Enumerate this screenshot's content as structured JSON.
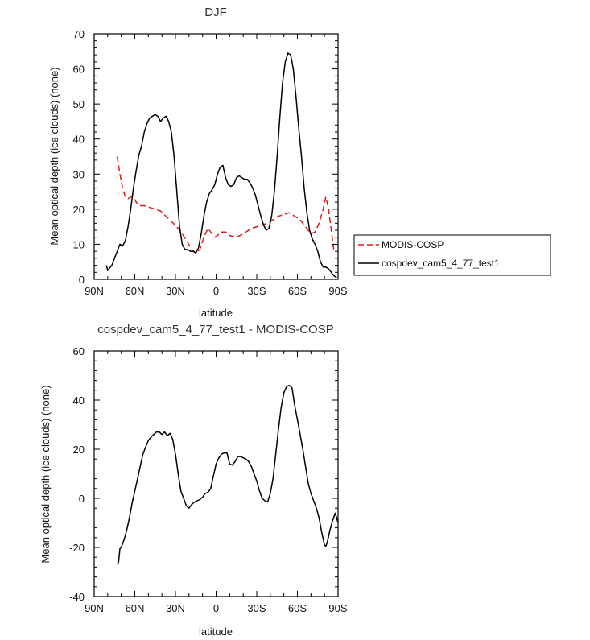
{
  "chart_data": [
    {
      "type": "line",
      "title": "DJF",
      "xlabel": "latitude",
      "ylabel": "Mean optical depth (ice clouds) (none)",
      "xlim": [
        -90,
        90
      ],
      "ylim": [
        0,
        70
      ],
      "xticks": [
        -90,
        -60,
        -30,
        0,
        30,
        60,
        90
      ],
      "xtick_labels": [
        "90N",
        "60N",
        "30N",
        "0",
        "30S",
        "60S",
        "90S"
      ],
      "yticks": [
        0,
        10,
        20,
        30,
        40,
        50,
        60,
        70
      ],
      "ytick_labels": [
        "0",
        "10",
        "20",
        "30",
        "40",
        "50",
        "60",
        "70"
      ],
      "legend_position": "right",
      "series": [
        {
          "name": "MODIS-COSP",
          "color": "#e31a1c",
          "dash": "dashed",
          "points": [
            [
              -73,
              35
            ],
            [
              -71,
              30
            ],
            [
              -69,
              26
            ],
            [
              -67,
              23.5
            ],
            [
              -65,
              23
            ],
            [
              -63,
              23.5
            ],
            [
              -61,
              23.5
            ],
            [
              -59,
              22
            ],
            [
              -57,
              21
            ],
            [
              -53,
              21
            ],
            [
              -49,
              20.5
            ],
            [
              -45,
              20
            ],
            [
              -41,
              19.5
            ],
            [
              -37,
              18
            ],
            [
              -33,
              16.5
            ],
            [
              -29,
              15
            ],
            [
              -25,
              13
            ],
            [
              -21,
              10.5
            ],
            [
              -18,
              8.5
            ],
            [
              -15,
              7.5
            ],
            [
              -12,
              8.5
            ],
            [
              -9,
              12
            ],
            [
              -6,
              14.5
            ],
            [
              -3,
              13
            ],
            [
              -1,
              12
            ],
            [
              1,
              12.5
            ],
            [
              4,
              13.5
            ],
            [
              7,
              13.5
            ],
            [
              10,
              12.5
            ],
            [
              14,
              12
            ],
            [
              18,
              12.5
            ],
            [
              22,
              13.5
            ],
            [
              26,
              14.5
            ],
            [
              30,
              15
            ],
            [
              34,
              15.5
            ],
            [
              38,
              16
            ],
            [
              42,
              17
            ],
            [
              46,
              18
            ],
            [
              50,
              18.5
            ],
            [
              54,
              19
            ],
            [
              58,
              18
            ],
            [
              62,
              17
            ],
            [
              66,
              15
            ],
            [
              70,
              13
            ],
            [
              73,
              13.5
            ],
            [
              76,
              16
            ],
            [
              79,
              20
            ],
            [
              81,
              23.5
            ],
            [
              83,
              20
            ],
            [
              85,
              14
            ],
            [
              87,
              8
            ]
          ]
        },
        {
          "name": "cospdev_cam5_4_77_test1",
          "color": "#000000",
          "dash": "solid",
          "points": [
            [
              -81,
              4
            ],
            [
              -80,
              2.5
            ],
            [
              -79,
              3
            ],
            [
              -77,
              4
            ],
            [
              -75,
              6
            ],
            [
              -73,
              8
            ],
            [
              -71,
              10
            ],
            [
              -69,
              9.5
            ],
            [
              -67,
              11
            ],
            [
              -65,
              15
            ],
            [
              -63,
              20
            ],
            [
              -61,
              26
            ],
            [
              -59,
              31
            ],
            [
              -57,
              35.5
            ],
            [
              -55,
              38
            ],
            [
              -53,
              42
            ],
            [
              -51,
              44.5
            ],
            [
              -49,
              46
            ],
            [
              -47,
              46.5
            ],
            [
              -45,
              47
            ],
            [
              -43,
              46.5
            ],
            [
              -41,
              45
            ],
            [
              -39,
              46
            ],
            [
              -37,
              46.5
            ],
            [
              -35,
              45
            ],
            [
              -33,
              42
            ],
            [
              -31,
              35
            ],
            [
              -29,
              25
            ],
            [
              -27,
              15
            ],
            [
              -25,
              10
            ],
            [
              -23,
              8.5
            ],
            [
              -21,
              8.5
            ],
            [
              -19,
              8
            ],
            [
              -17,
              8
            ],
            [
              -15,
              7.5
            ],
            [
              -13,
              9
            ],
            [
              -11,
              13
            ],
            [
              -9,
              18
            ],
            [
              -7,
              22
            ],
            [
              -5,
              24.5
            ],
            [
              -3,
              25.5
            ],
            [
              -1,
              27
            ],
            [
              1,
              30
            ],
            [
              3,
              32
            ],
            [
              5,
              32.5
            ],
            [
              7,
              29
            ],
            [
              9,
              27
            ],
            [
              11,
              26.5
            ],
            [
              13,
              27
            ],
            [
              15,
              29
            ],
            [
              17,
              29.5
            ],
            [
              19,
              29
            ],
            [
              21,
              28.5
            ],
            [
              23,
              28.5
            ],
            [
              25,
              27.5
            ],
            [
              27,
              26
            ],
            [
              29,
              24
            ],
            [
              31,
              21
            ],
            [
              33,
              18
            ],
            [
              35,
              15.5
            ],
            [
              37,
              14
            ],
            [
              39,
              14.5
            ],
            [
              41,
              18
            ],
            [
              43,
              25
            ],
            [
              45,
              35
            ],
            [
              47,
              46
            ],
            [
              49,
              56
            ],
            [
              51,
              62
            ],
            [
              53,
              64.5
            ],
            [
              55,
              64
            ],
            [
              57,
              60
            ],
            [
              59,
              52
            ],
            [
              61,
              43
            ],
            [
              63,
              35
            ],
            [
              65,
              26
            ],
            [
              67,
              19
            ],
            [
              69,
              14
            ],
            [
              71,
              11.5
            ],
            [
              73,
              10
            ],
            [
              75,
              8
            ],
            [
              77,
              5
            ],
            [
              79,
              3.5
            ],
            [
              81,
              3.5
            ],
            [
              83,
              3
            ],
            [
              85,
              2
            ],
            [
              87,
              1
            ],
            [
              89,
              0.5
            ]
          ]
        }
      ]
    },
    {
      "type": "line",
      "title": "cospdev_cam5_4_77_test1 - MODIS-COSP",
      "xlabel": "latitude",
      "ylabel": "Mean optical depth (ice clouds) (none)",
      "xlim": [
        -90,
        90
      ],
      "ylim": [
        -40,
        60
      ],
      "xticks": [
        -90,
        -60,
        -30,
        0,
        30,
        60,
        90
      ],
      "xtick_labels": [
        "90N",
        "60N",
        "30N",
        "0",
        "30S",
        "60S",
        "90S"
      ],
      "yticks": [
        -40,
        -20,
        0,
        20,
        40,
        60
      ],
      "ytick_labels": [
        "-40",
        "-20",
        "0",
        "20",
        "40",
        "60"
      ],
      "series": [
        {
          "name": "",
          "color": "#000000",
          "dash": "solid",
          "points": [
            [
              -73,
              -27
            ],
            [
              -72,
              -26
            ],
            [
              -71,
              -20.5
            ],
            [
              -70,
              -20
            ],
            [
              -68,
              -17
            ],
            [
              -66,
              -13
            ],
            [
              -64,
              -8
            ],
            [
              -62,
              -2
            ],
            [
              -60,
              3
            ],
            [
              -58,
              8
            ],
            [
              -56,
              13
            ],
            [
              -54,
              18
            ],
            [
              -52,
              21
            ],
            [
              -50,
              23.5
            ],
            [
              -48,
              25
            ],
            [
              -46,
              26
            ],
            [
              -44,
              27
            ],
            [
              -42,
              27
            ],
            [
              -40,
              26
            ],
            [
              -38,
              27
            ],
            [
              -36,
              25.5
            ],
            [
              -34,
              26.5
            ],
            [
              -32,
              24
            ],
            [
              -30,
              18
            ],
            [
              -28,
              10
            ],
            [
              -26,
              3
            ],
            [
              -24,
              0
            ],
            [
              -22,
              -3
            ],
            [
              -20,
              -4
            ],
            [
              -18,
              -2.5
            ],
            [
              -16,
              -1.5
            ],
            [
              -14,
              -1
            ],
            [
              -12,
              -0.5
            ],
            [
              -10,
              0.5
            ],
            [
              -8,
              2
            ],
            [
              -6,
              2.5
            ],
            [
              -4,
              4
            ],
            [
              -2,
              9
            ],
            [
              0,
              14
            ],
            [
              2,
              16.5
            ],
            [
              4,
              18
            ],
            [
              6,
              18.5
            ],
            [
              8,
              18.5
            ],
            [
              10,
              14
            ],
            [
              12,
              13.5
            ],
            [
              14,
              15
            ],
            [
              16,
              17
            ],
            [
              18,
              17
            ],
            [
              20,
              16.5
            ],
            [
              22,
              16
            ],
            [
              24,
              15
            ],
            [
              26,
              13
            ],
            [
              28,
              10
            ],
            [
              30,
              7
            ],
            [
              32,
              3
            ],
            [
              34,
              0
            ],
            [
              36,
              -1
            ],
            [
              38,
              -1.5
            ],
            [
              40,
              2
            ],
            [
              42,
              8
            ],
            [
              44,
              18
            ],
            [
              46,
              28
            ],
            [
              48,
              37
            ],
            [
              50,
              43
            ],
            [
              52,
              45.5
            ],
            [
              54,
              46
            ],
            [
              56,
              45
            ],
            [
              58,
              38
            ],
            [
              60,
              32
            ],
            [
              62,
              26
            ],
            [
              64,
              20
            ],
            [
              66,
              13
            ],
            [
              68,
              6
            ],
            [
              70,
              2
            ],
            [
              72,
              -1
            ],
            [
              74,
              -4
            ],
            [
              76,
              -8
            ],
            [
              78,
              -14
            ],
            [
              80,
              -19
            ],
            [
              81,
              -19.5
            ],
            [
              82,
              -18
            ],
            [
              84,
              -13
            ],
            [
              86,
              -9
            ],
            [
              88,
              -6
            ],
            [
              90,
              -10
            ]
          ]
        }
      ]
    }
  ]
}
